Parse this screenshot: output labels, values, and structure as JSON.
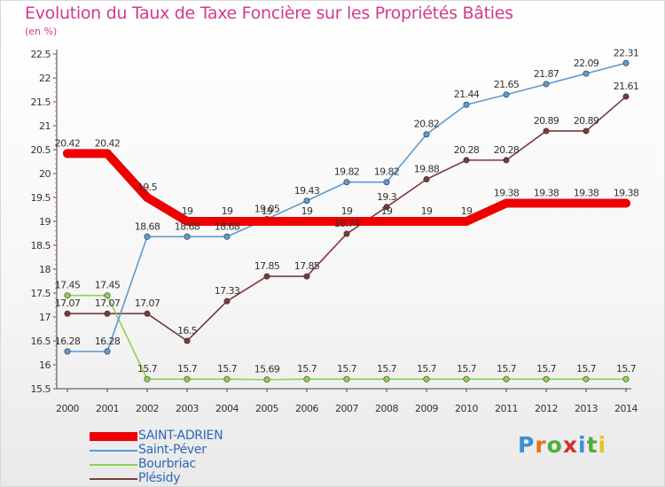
{
  "title": "Evolution du Taux de Taxe Foncière sur les Propriétés Bâties",
  "unit_label": "(en %)",
  "logo": {
    "letters": [
      "P",
      "r",
      "o",
      "x",
      "i",
      "t",
      "i"
    ],
    "colors": [
      "#3a8fd6",
      "#e8711c",
      "#4cae3c",
      "#d62e2e",
      "#3a8fd6",
      "#4cae3c",
      "#e8c21c"
    ]
  },
  "chart_data": {
    "type": "line",
    "x": [
      "2000",
      "2001",
      "2002",
      "2003",
      "2004",
      "2005",
      "2006",
      "2007",
      "2008",
      "2009",
      "2010",
      "2011",
      "2012",
      "2013",
      "2014"
    ],
    "yticks": [
      "15.5",
      "16",
      "16.5",
      "17",
      "17.5",
      "18",
      "18.5",
      "19",
      "19.5",
      "20",
      "20.5",
      "21",
      "21.5",
      "22",
      "22.5"
    ],
    "ylim": [
      15.5,
      22.5
    ],
    "grid": false,
    "legend_position": "bottom-left",
    "series": [
      {
        "name": "SAINT-ADRIEN",
        "color": "#ee0000",
        "values": [
          20.42,
          20.42,
          19.5,
          19,
          19,
          19,
          19,
          19,
          19,
          19,
          19,
          19.38,
          19.38,
          19.38,
          19.38
        ],
        "labels": [
          "20.42",
          "20.42",
          "19.5",
          "19",
          "19",
          "19",
          "19",
          "19",
          "19",
          "19",
          "19",
          "19.38",
          "19.38",
          "19.38",
          "19.38"
        ]
      },
      {
        "name": "Saint-Péver",
        "color": "#5b9bd5",
        "values": [
          16.28,
          16.28,
          18.68,
          18.68,
          18.68,
          19.05,
          19.43,
          19.82,
          19.82,
          20.82,
          21.44,
          21.65,
          21.87,
          22.09,
          22.31
        ],
        "labels": [
          "16.28",
          "16.28",
          "18.68",
          "18.68",
          "18.68",
          "19.05",
          "19.43",
          "19.82",
          "19.82",
          "20.82",
          "21.44",
          "21.65",
          "21.87",
          "22.09",
          "22.31"
        ]
      },
      {
        "name": "Bourbriac",
        "color": "#8fd14f",
        "values": [
          17.45,
          17.45,
          15.7,
          15.7,
          15.7,
          15.69,
          15.7,
          15.7,
          15.7,
          15.7,
          15.7,
          15.7,
          15.7,
          15.7,
          15.7
        ],
        "labels": [
          "17.45",
          "17.45",
          "15.7",
          "15.7",
          "15.7",
          "15.69",
          "15.7",
          "15.7",
          "15.7",
          "15.7",
          "15.7",
          "15.7",
          "15.7",
          "15.7",
          "15.7"
        ]
      },
      {
        "name": "Plésidy",
        "color": "#7a3b3b",
        "values": [
          17.07,
          17.07,
          17.07,
          16.5,
          17.33,
          17.85,
          17.85,
          18.74,
          19.3,
          19.88,
          20.28,
          20.28,
          20.89,
          20.89,
          21.61
        ],
        "labels": [
          "17.07",
          "17.07",
          "17.07",
          "16.5",
          "17.33",
          "17.85",
          "17.85",
          "18.74",
          "19.3",
          "19.88",
          "20.28",
          "20.28",
          "20.89",
          "20.89",
          "21.61"
        ]
      }
    ]
  }
}
